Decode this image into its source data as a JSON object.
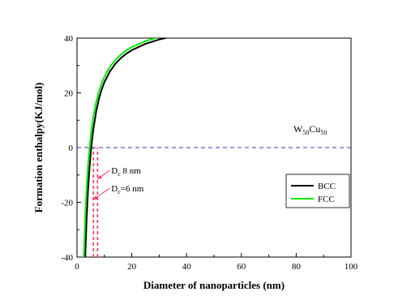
{
  "chart_data": {
    "type": "line",
    "title": "",
    "xlabel": "Diameter of nanoparticles (nm)",
    "ylabel": "Formation enthalpy(KJ/mol)",
    "xlim": [
      0,
      100
    ],
    "ylim": [
      -40,
      40
    ],
    "x_ticks": [
      "0",
      "20",
      "40",
      "60",
      "80",
      "100"
    ],
    "y_ticks": [
      "-40",
      "-20",
      "0",
      "20",
      "40"
    ],
    "series": [
      {
        "name": "BCC",
        "color": "#000000",
        "x": [
          3,
          3.5,
          4,
          4.5,
          5,
          5.5,
          6,
          7,
          8,
          9,
          10,
          12,
          14,
          16,
          18,
          20,
          25,
          30,
          35,
          40,
          50,
          60,
          70,
          80,
          90,
          100
        ],
        "y": [
          -40,
          -26.3,
          -16,
          -8.3,
          -2.1,
          2.8,
          6.9,
          13.2,
          17.8,
          21.2,
          23.9,
          27.8,
          30.6,
          32.7,
          34.3,
          35.6,
          37.9,
          39.5,
          40.6,
          41.4,
          42.6,
          43.4,
          44.0,
          44.4,
          44.7,
          45.0
        ]
      },
      {
        "name": "FCC",
        "color": "#00ee00",
        "x": [
          2.5,
          3,
          3.5,
          4,
          4.5,
          5,
          5.5,
          6,
          7,
          8,
          9,
          10,
          12,
          14,
          16,
          18,
          20,
          25,
          30,
          35,
          40,
          50,
          60,
          70,
          80,
          90,
          100
        ],
        "y": [
          -40,
          -25.3,
          -14.8,
          -7.0,
          -0.9,
          4.0,
          8.0,
          11.3,
          16.6,
          20.5,
          23.5,
          25.9,
          29.5,
          32.0,
          34.0,
          35.5,
          36.7,
          38.9,
          40.4,
          41.4,
          42.2,
          43.3,
          44.1,
          44.6,
          45.0,
          45.3,
          45.6
        ]
      }
    ],
    "reference_line": {
      "y": 0,
      "color": "#3333cc",
      "style": "dashed"
    },
    "markers": [
      {
        "x": 6,
        "color": "#ff3366",
        "style": "dashed",
        "from_y": -40,
        "to_y": 0
      },
      {
        "x": 7.5,
        "color": "#ff3366",
        "style": "dashed",
        "from_y": -40,
        "to_y": 0
      }
    ],
    "annotations": [
      {
        "main": "D",
        "sub": "c",
        "rest": " 8 nm",
        "x": 12.5,
        "y": -9.5,
        "arrow_to": [
          7.5,
          -11.5
        ]
      },
      {
        "main": "D",
        "sub": "c",
        "rest": "=6 nm",
        "x": 12.5,
        "y": -16,
        "arrow_to": [
          6,
          -19
        ]
      }
    ],
    "composition_label": {
      "p1": "W",
      "s1": "50",
      "p2": "Cu",
      "s2": "50"
    },
    "legend": {
      "position": "right",
      "entries": [
        "BCC",
        "FCC"
      ]
    },
    "grid": false
  }
}
